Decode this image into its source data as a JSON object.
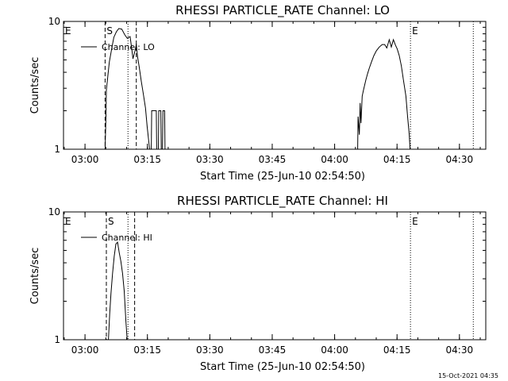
{
  "chart_data": [
    {
      "type": "line",
      "title": "RHESSI PARTICLE_RATE Channel: LO",
      "xlabel": "Start Time (25-Jun-10 02:54:50)",
      "ylabel": "Counts/sec",
      "yscale": "log",
      "ylim": [
        1,
        10
      ],
      "xlim_minutes_after_start": [
        0,
        101.5
      ],
      "x_tick_labels": [
        "03:00",
        "03:15",
        "03:30",
        "03:45",
        "04:00",
        "04:15",
        "04:30"
      ],
      "x_tick_minutes": [
        5.17,
        20.17,
        35.17,
        50.17,
        65.17,
        80.17,
        95.17
      ],
      "y_tick_labels": [
        "1",
        "10"
      ],
      "y_tick_values": [
        1,
        10
      ],
      "legend": [
        "Channel: LO"
      ],
      "series": [
        {
          "name": "Channel: LO",
          "x": [
            0,
            10,
            10.2,
            10.3,
            11,
            11.7,
            12.1,
            12.7,
            13.3,
            14,
            14.7,
            15.3,
            16,
            16.4,
            16.7,
            17.2,
            17.5,
            17.8,
            18.2,
            18.7,
            19.2,
            19.7,
            20.1,
            20.7,
            21.1,
            21.2,
            22.3,
            22.4,
            22.8,
            22.9,
            23.4,
            23.5,
            23.8,
            23.9,
            24.3,
            24.4,
            70.7,
            70.8,
            71.1,
            71.3,
            71.5,
            71.8,
            72.1,
            72.4,
            72.7,
            73.1,
            73.5,
            74,
            74.6,
            75.2,
            75.9,
            76.6,
            77.2,
            77.7,
            78.3,
            78.8,
            79.3,
            79.8,
            80.2,
            80.7,
            81.2,
            81.7,
            82.3,
            82.7,
            83.1,
            83.3,
            101.5
          ],
          "y": [
            1,
            1,
            1.8,
            2.9,
            4.8,
            6.4,
            7.5,
            8.3,
            8.8,
            8.7,
            7.9,
            7.4,
            7.6,
            6.1,
            5.1,
            5.9,
            6.6,
            5.3,
            4.4,
            3.4,
            2.7,
            2.1,
            1.5,
            1,
            1,
            2,
            2,
            1,
            1,
            2,
            2,
            1,
            1,
            2,
            2,
            1,
            1,
            1.8,
            1.3,
            2.3,
            1.6,
            2.6,
            2.9,
            3.2,
            3.5,
            3.9,
            4.3,
            4.8,
            5.4,
            5.9,
            6.3,
            6.6,
            6.6,
            6.2,
            7.2,
            6.3,
            7.2,
            6.5,
            6.1,
            5.4,
            4.5,
            3.5,
            2.6,
            1.8,
            1.3,
            1,
            1
          ]
        }
      ],
      "markers": [
        {
          "label": "E",
          "minute": 0,
          "style": "dashed"
        },
        {
          "label": "S",
          "minute": 10,
          "style": "dashed"
        },
        {
          "label": "",
          "minute": 15.5,
          "style": "dotted"
        },
        {
          "label": "",
          "minute": 17.5,
          "style": "dashed"
        },
        {
          "label": "E",
          "minute": 83.4,
          "style": "dotted"
        },
        {
          "label": "",
          "minute": 98.5,
          "style": "dotted"
        }
      ]
    },
    {
      "type": "line",
      "title": "RHESSI PARTICLE_RATE Channel: HI",
      "xlabel": "Start Time (25-Jun-10 02:54:50)",
      "ylabel": "Counts/sec",
      "yscale": "log",
      "ylim": [
        1,
        10
      ],
      "xlim_minutes_after_start": [
        0,
        101.5
      ],
      "x_tick_labels": [
        "03:00",
        "03:15",
        "03:30",
        "03:45",
        "04:00",
        "04:15",
        "04:30"
      ],
      "x_tick_minutes": [
        5.17,
        20.17,
        35.17,
        50.17,
        65.17,
        80.17,
        95.17
      ],
      "y_tick_labels": [
        "1",
        "10"
      ],
      "y_tick_values": [
        1,
        10
      ],
      "legend": [
        "Channel: HI"
      ],
      "series": [
        {
          "name": "Channel: HI",
          "x": [
            0,
            10.8,
            11.1,
            11.4,
            11.8,
            12.2,
            12.6,
            13,
            13.4,
            13.8,
            14.2,
            14.6,
            15,
            15.3,
            101.5
          ],
          "y": [
            1,
            1,
            1.6,
            2.3,
            3.3,
            4.5,
            5.6,
            5.8,
            4.8,
            4.1,
            3.3,
            2.4,
            1.4,
            1,
            1
          ]
        }
      ],
      "markers": [
        {
          "label": "E",
          "minute": 0,
          "style": "dashed"
        },
        {
          "label": "S",
          "minute": 10.3,
          "style": "dashed"
        },
        {
          "label": "",
          "minute": 15.5,
          "style": "dotted"
        },
        {
          "label": "",
          "minute": 17.1,
          "style": "dashed"
        },
        {
          "label": "E",
          "minute": 83.4,
          "style": "dotted"
        },
        {
          "label": "",
          "minute": 98.5,
          "style": "dotted"
        }
      ]
    }
  ],
  "timestamp": "15-Oct-2021 04:35"
}
